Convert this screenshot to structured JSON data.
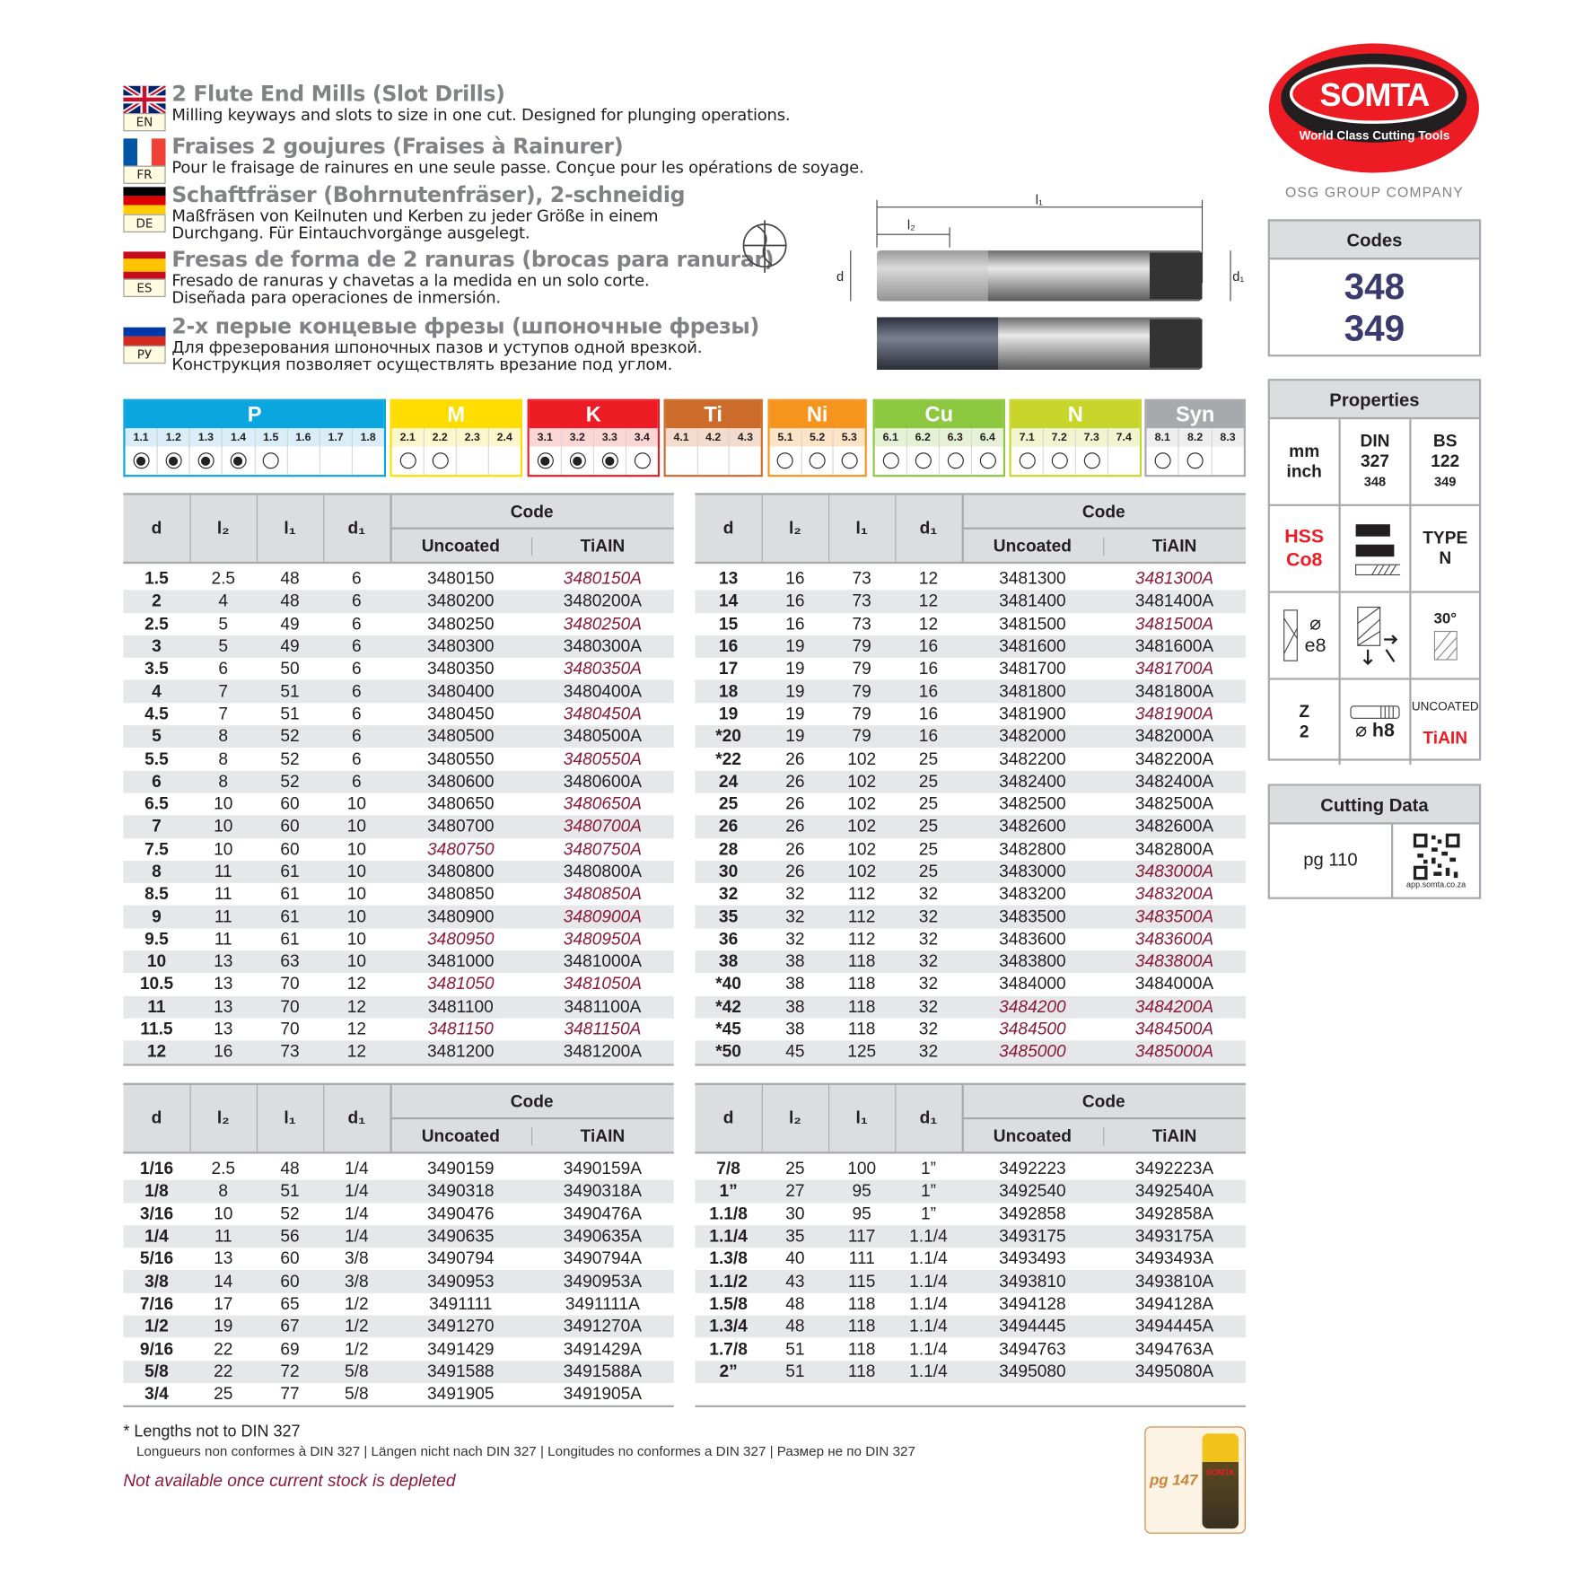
{
  "brand": {
    "logo": "SOMTA",
    "tagline": "World Class Cutting Tools",
    "group": "OSG GROUP COMPANY",
    "accent": "#ed1c24"
  },
  "languages": [
    {
      "code": "EN",
      "title": "2 Flute End Mills (Slot Drills)",
      "desc": [
        "Milling keyways and slots to size in one cut. Designed for plunging operations."
      ]
    },
    {
      "code": "FR",
      "title": "Fraises 2 goujures (Fraises à Rainurer)",
      "desc": [
        "Pour le fraisage de rainures en une seule passe. Conçue pour les opérations de soyage."
      ]
    },
    {
      "code": "DE",
      "title": "Schaftfräser (Bohrnutenfräser), 2-schneidig",
      "desc": [
        "Maßfräsen von Keilnuten und Kerben zu jeder Größe in einem",
        "Durchgang. Für Eintauchvorgänge ausgelegt."
      ]
    },
    {
      "code": "ES",
      "title": "Fresas de forma de 2 ranuras (brocas para ranurar)",
      "desc": [
        "Fresado de ranuras y chavetas a la medida en un solo corte.",
        "Diseñada para operaciones de inmersión."
      ]
    },
    {
      "code": "РУ",
      "title": "2-х перые концевые фрезы (шпоночные фрезы)",
      "desc": [
        "Для фрезерования шпоночных пазов и уступов одной врезкой.",
        "Конструкция позволяет осуществлять врезание под углом."
      ]
    }
  ],
  "diagram": {
    "l1": "l₁",
    "l2": "l₂",
    "d": "d",
    "d1": "d₁"
  },
  "materials": [
    {
      "name": "P",
      "color": "#0aa6e0",
      "tint": "#d9eef9",
      "subs": [
        [
          "1.1",
          "filled"
        ],
        [
          "1.2",
          "filled"
        ],
        [
          "1.3",
          "filled"
        ],
        [
          "1.4",
          "filled"
        ],
        [
          "1.5",
          "empty"
        ],
        [
          "1.6",
          "none"
        ],
        [
          "1.7",
          "none"
        ],
        [
          "1.8",
          "none"
        ]
      ]
    },
    {
      "name": "M",
      "color": "#ffdd00",
      "tint": "#fff7cc",
      "subs": [
        [
          "2.1",
          "empty"
        ],
        [
          "2.2",
          "empty"
        ],
        [
          "2.3",
          "none"
        ],
        [
          "2.4",
          "none"
        ]
      ]
    },
    {
      "name": "K",
      "color": "#ed1c24",
      "tint": "#fbd6d4",
      "subs": [
        [
          "3.1",
          "filled"
        ],
        [
          "3.2",
          "filled"
        ],
        [
          "3.3",
          "filled"
        ],
        [
          "3.4",
          "empty"
        ]
      ]
    },
    {
      "name": "Ti",
      "color": "#cc6b2a",
      "tint": "#f3dccb",
      "subs": [
        [
          "4.1",
          "none"
        ],
        [
          "4.2",
          "none"
        ],
        [
          "4.3",
          "none"
        ]
      ]
    },
    {
      "name": "Ni",
      "color": "#f7941d",
      "tint": "#fde4c6",
      "subs": [
        [
          "5.1",
          "empty"
        ],
        [
          "5.2",
          "empty"
        ],
        [
          "5.3",
          "empty"
        ]
      ]
    },
    {
      "name": "Cu",
      "color": "#8dc63f",
      "tint": "#e5f1d4",
      "subs": [
        [
          "6.1",
          "empty"
        ],
        [
          "6.2",
          "empty"
        ],
        [
          "6.3",
          "empty"
        ],
        [
          "6.4",
          "empty"
        ]
      ]
    },
    {
      "name": "N",
      "color": "#c8d62b",
      "tint": "#f1f5cf",
      "subs": [
        [
          "7.1",
          "empty"
        ],
        [
          "7.2",
          "empty"
        ],
        [
          "7.3",
          "empty"
        ],
        [
          "7.4",
          "none"
        ]
      ]
    },
    {
      "name": "Syn",
      "color": "#a7a9ac",
      "tint": "#eeeeee",
      "subs": [
        [
          "8.1",
          "empty"
        ],
        [
          "8.2",
          "empty"
        ],
        [
          "8.3",
          "none"
        ]
      ]
    }
  ],
  "table_headers": {
    "d": "d",
    "l2": "l₂",
    "l1": "l₁",
    "d1": "d₁",
    "code": "Code",
    "uncoated": "Uncoated",
    "tiain": "TiAIN"
  },
  "tables": [
    {
      "rows": [
        [
          "1.5",
          "2.5",
          "48",
          "6",
          "3480150",
          "3480150A",
          0,
          1
        ],
        [
          "2",
          "4",
          "48",
          "6",
          "3480200",
          "3480200A",
          0,
          0
        ],
        [
          "2.5",
          "5",
          "49",
          "6",
          "3480250",
          "3480250A",
          0,
          1
        ],
        [
          "3",
          "5",
          "49",
          "6",
          "3480300",
          "3480300A",
          0,
          0
        ],
        [
          "3.5",
          "6",
          "50",
          "6",
          "3480350",
          "3480350A",
          0,
          1
        ],
        [
          "4",
          "7",
          "51",
          "6",
          "3480400",
          "3480400A",
          0,
          0
        ],
        [
          "4.5",
          "7",
          "51",
          "6",
          "3480450",
          "3480450A",
          0,
          1
        ],
        [
          "5",
          "8",
          "52",
          "6",
          "3480500",
          "3480500A",
          0,
          0
        ],
        [
          "5.5",
          "8",
          "52",
          "6",
          "3480550",
          "3480550A",
          0,
          1
        ],
        [
          "6",
          "8",
          "52",
          "6",
          "3480600",
          "3480600A",
          0,
          0
        ],
        [
          "6.5",
          "10",
          "60",
          "10",
          "3480650",
          "3480650A",
          0,
          1
        ],
        [
          "7",
          "10",
          "60",
          "10",
          "3480700",
          "3480700A",
          0,
          1
        ],
        [
          "7.5",
          "10",
          "60",
          "10",
          "3480750",
          "3480750A",
          1,
          1
        ],
        [
          "8",
          "11",
          "61",
          "10",
          "3480800",
          "3480800A",
          0,
          0
        ],
        [
          "8.5",
          "11",
          "61",
          "10",
          "3480850",
          "3480850A",
          0,
          1
        ],
        [
          "9",
          "11",
          "61",
          "10",
          "3480900",
          "3480900A",
          0,
          1
        ],
        [
          "9.5",
          "11",
          "61",
          "10",
          "3480950",
          "3480950A",
          1,
          1
        ],
        [
          "10",
          "13",
          "63",
          "10",
          "3481000",
          "3481000A",
          0,
          0
        ],
        [
          "10.5",
          "13",
          "70",
          "12",
          "3481050",
          "3481050A",
          1,
          1
        ],
        [
          "11",
          "13",
          "70",
          "12",
          "3481100",
          "3481100A",
          0,
          0
        ],
        [
          "11.5",
          "13",
          "70",
          "12",
          "3481150",
          "3481150A",
          1,
          1
        ],
        [
          "12",
          "16",
          "73",
          "12",
          "3481200",
          "3481200A",
          0,
          0
        ]
      ]
    },
    {
      "rows": [
        [
          "13",
          "16",
          "73",
          "12",
          "3481300",
          "3481300A",
          0,
          1
        ],
        [
          "14",
          "16",
          "73",
          "12",
          "3481400",
          "3481400A",
          0,
          0
        ],
        [
          "15",
          "16",
          "73",
          "12",
          "3481500",
          "3481500A",
          0,
          1
        ],
        [
          "16",
          "19",
          "79",
          "16",
          "3481600",
          "3481600A",
          0,
          0
        ],
        [
          "17",
          "19",
          "79",
          "16",
          "3481700",
          "3481700A",
          0,
          1
        ],
        [
          "18",
          "19",
          "79",
          "16",
          "3481800",
          "3481800A",
          0,
          0
        ],
        [
          "19",
          "19",
          "79",
          "16",
          "3481900",
          "3481900A",
          0,
          1
        ],
        [
          "*20",
          "19",
          "79",
          "16",
          "3482000",
          "3482000A",
          0,
          0
        ],
        [
          "*22",
          "26",
          "102",
          "25",
          "3482200",
          "3482200A",
          0,
          0
        ],
        [
          "24",
          "26",
          "102",
          "25",
          "3482400",
          "3482400A",
          0,
          0
        ],
        [
          "25",
          "26",
          "102",
          "25",
          "3482500",
          "3482500A",
          0,
          0
        ],
        [
          "26",
          "26",
          "102",
          "25",
          "3482600",
          "3482600A",
          0,
          0
        ],
        [
          "28",
          "26",
          "102",
          "25",
          "3482800",
          "3482800A",
          0,
          0
        ],
        [
          "30",
          "26",
          "102",
          "25",
          "3483000",
          "3483000A",
          0,
          1
        ],
        [
          "32",
          "32",
          "112",
          "32",
          "3483200",
          "3483200A",
          0,
          1
        ],
        [
          "35",
          "32",
          "112",
          "32",
          "3483500",
          "3483500A",
          0,
          1
        ],
        [
          "36",
          "32",
          "112",
          "32",
          "3483600",
          "3483600A",
          0,
          1
        ],
        [
          "38",
          "38",
          "118",
          "32",
          "3483800",
          "3483800A",
          0,
          1
        ],
        [
          "*40",
          "38",
          "118",
          "32",
          "3484000",
          "3484000A",
          0,
          0
        ],
        [
          "*42",
          "38",
          "118",
          "32",
          "3484200",
          "3484200A",
          1,
          1
        ],
        [
          "*45",
          "38",
          "118",
          "32",
          "3484500",
          "3484500A",
          1,
          1
        ],
        [
          "*50",
          "45",
          "125",
          "32",
          "3485000",
          "3485000A",
          1,
          1
        ]
      ]
    },
    {
      "rows": [
        [
          "1/16",
          "2.5",
          "48",
          "1/4",
          "3490159",
          "3490159A",
          0,
          0
        ],
        [
          "1/8",
          "8",
          "51",
          "1/4",
          "3490318",
          "3490318A",
          0,
          0
        ],
        [
          "3/16",
          "10",
          "52",
          "1/4",
          "3490476",
          "3490476A",
          0,
          0
        ],
        [
          "1/4",
          "11",
          "56",
          "1/4",
          "3490635",
          "3490635A",
          0,
          0
        ],
        [
          "5/16",
          "13",
          "60",
          "3/8",
          "3490794",
          "3490794A",
          0,
          0
        ],
        [
          "3/8",
          "14",
          "60",
          "3/8",
          "3490953",
          "3490953A",
          0,
          0
        ],
        [
          "7/16",
          "17",
          "65",
          "1/2",
          "3491111",
          "3491111A",
          0,
          0
        ],
        [
          "1/2",
          "19",
          "67",
          "1/2",
          "3491270",
          "3491270A",
          0,
          0
        ],
        [
          "9/16",
          "22",
          "69",
          "1/2",
          "3491429",
          "3491429A",
          0,
          0
        ],
        [
          "5/8",
          "22",
          "72",
          "5/8",
          "3491588",
          "3491588A",
          0,
          0
        ],
        [
          "3/4",
          "25",
          "77",
          "5/8",
          "3491905",
          "3491905A",
          0,
          0
        ]
      ]
    },
    {
      "rows": [
        [
          "7/8",
          "25",
          "100",
          "1”",
          "3492223",
          "3492223A",
          0,
          0
        ],
        [
          "1”",
          "27",
          "95",
          "1”",
          "3492540",
          "3492540A",
          0,
          0
        ],
        [
          "1.1/8",
          "30",
          "95",
          "1”",
          "3492858",
          "3492858A",
          0,
          0
        ],
        [
          "1.1/4",
          "35",
          "117",
          "1.1/4",
          "3493175",
          "3493175A",
          0,
          0
        ],
        [
          "1.3/8",
          "40",
          "111",
          "1.1/4",
          "3493493",
          "3493493A",
          0,
          0
        ],
        [
          "1.1/2",
          "43",
          "115",
          "1.1/4",
          "3493810",
          "3493810A",
          0,
          0
        ],
        [
          "1.5/8",
          "48",
          "118",
          "1.1/4",
          "3494128",
          "3494128A",
          0,
          0
        ],
        [
          "1.3/4",
          "48",
          "118",
          "1.1/4",
          "3494445",
          "3494445A",
          0,
          0
        ],
        [
          "1.7/8",
          "51",
          "118",
          "1.1/4",
          "3494763",
          "3494763A",
          0,
          0
        ],
        [
          "2”",
          "51",
          "118",
          "1.1/4",
          "3495080",
          "3495080A",
          0,
          0
        ]
      ]
    }
  ],
  "codes": {
    "title": "Codes",
    "values": [
      "348",
      "349"
    ]
  },
  "properties": {
    "title": "Properties",
    "units": [
      "mm",
      "inch"
    ],
    "din": "DIN",
    "din_no": "327",
    "din_code": "348",
    "bs": "BS",
    "bs_no": "122",
    "bs_code": "349",
    "material": [
      "HSS",
      "Co8"
    ],
    "type_label": "TYPE",
    "type_value": "N",
    "tolerance": "e8",
    "diameter_symbol": "⌀",
    "angle": "30°",
    "z_label": "Z",
    "z_value": "2",
    "shank_tol": "h8",
    "coating": [
      "UNCOATED",
      "TiAIN"
    ]
  },
  "cutting_data": {
    "title": "Cutting Data",
    "page": "pg 110",
    "qr_caption": "app.somta.co.za"
  },
  "footer": {
    "note": "* Lengths not to DIN 327",
    "note_translations": "Longueurs non conformes à DIN 327 | Längen nicht nach DIN 327 | Longitudes no conformes a DIN 327 | Размер не по DIN 327",
    "stock_note": "Not available once current stock is depleted",
    "fluid_page": "pg 147",
    "fluid_label": "SOMTA"
  }
}
